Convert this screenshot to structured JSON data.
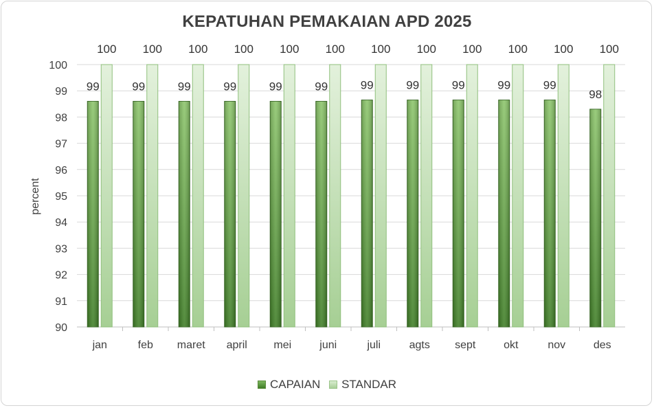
{
  "chart_data": {
    "type": "bar",
    "title": "KEPATUHAN PEMAKAIAN APD 2025",
    "xlabel": "",
    "ylabel": "percent",
    "ylim": [
      90,
      100
    ],
    "yticks": [
      90,
      91,
      92,
      93,
      94,
      95,
      96,
      97,
      98,
      99,
      100
    ],
    "categories": [
      "jan",
      "feb",
      "maret",
      "april",
      "mei",
      "juni",
      "juli",
      "agts",
      "sept",
      "okt",
      "nov",
      "des"
    ],
    "series": [
      {
        "name": "CAPAIAN",
        "values": [
          98.6,
          98.6,
          98.6,
          98.6,
          98.6,
          98.6,
          98.65,
          98.65,
          98.65,
          98.65,
          98.65,
          98.3
        ],
        "labels": [
          "99",
          "99",
          "99",
          "99",
          "99",
          "99",
          "99",
          "99",
          "99",
          "99",
          "99",
          "98"
        ],
        "color": "#5a9a3c"
      },
      {
        "name": "STANDAR",
        "values": [
          100,
          100,
          100,
          100,
          100,
          100,
          100,
          100,
          100,
          100,
          100,
          100
        ],
        "labels": [
          "100",
          "100",
          "100",
          "100",
          "100",
          "100",
          "100",
          "100",
          "100",
          "100",
          "100",
          "100"
        ],
        "color": "#c4e0b6"
      }
    ],
    "grid": true,
    "legend_position": "bottom"
  }
}
